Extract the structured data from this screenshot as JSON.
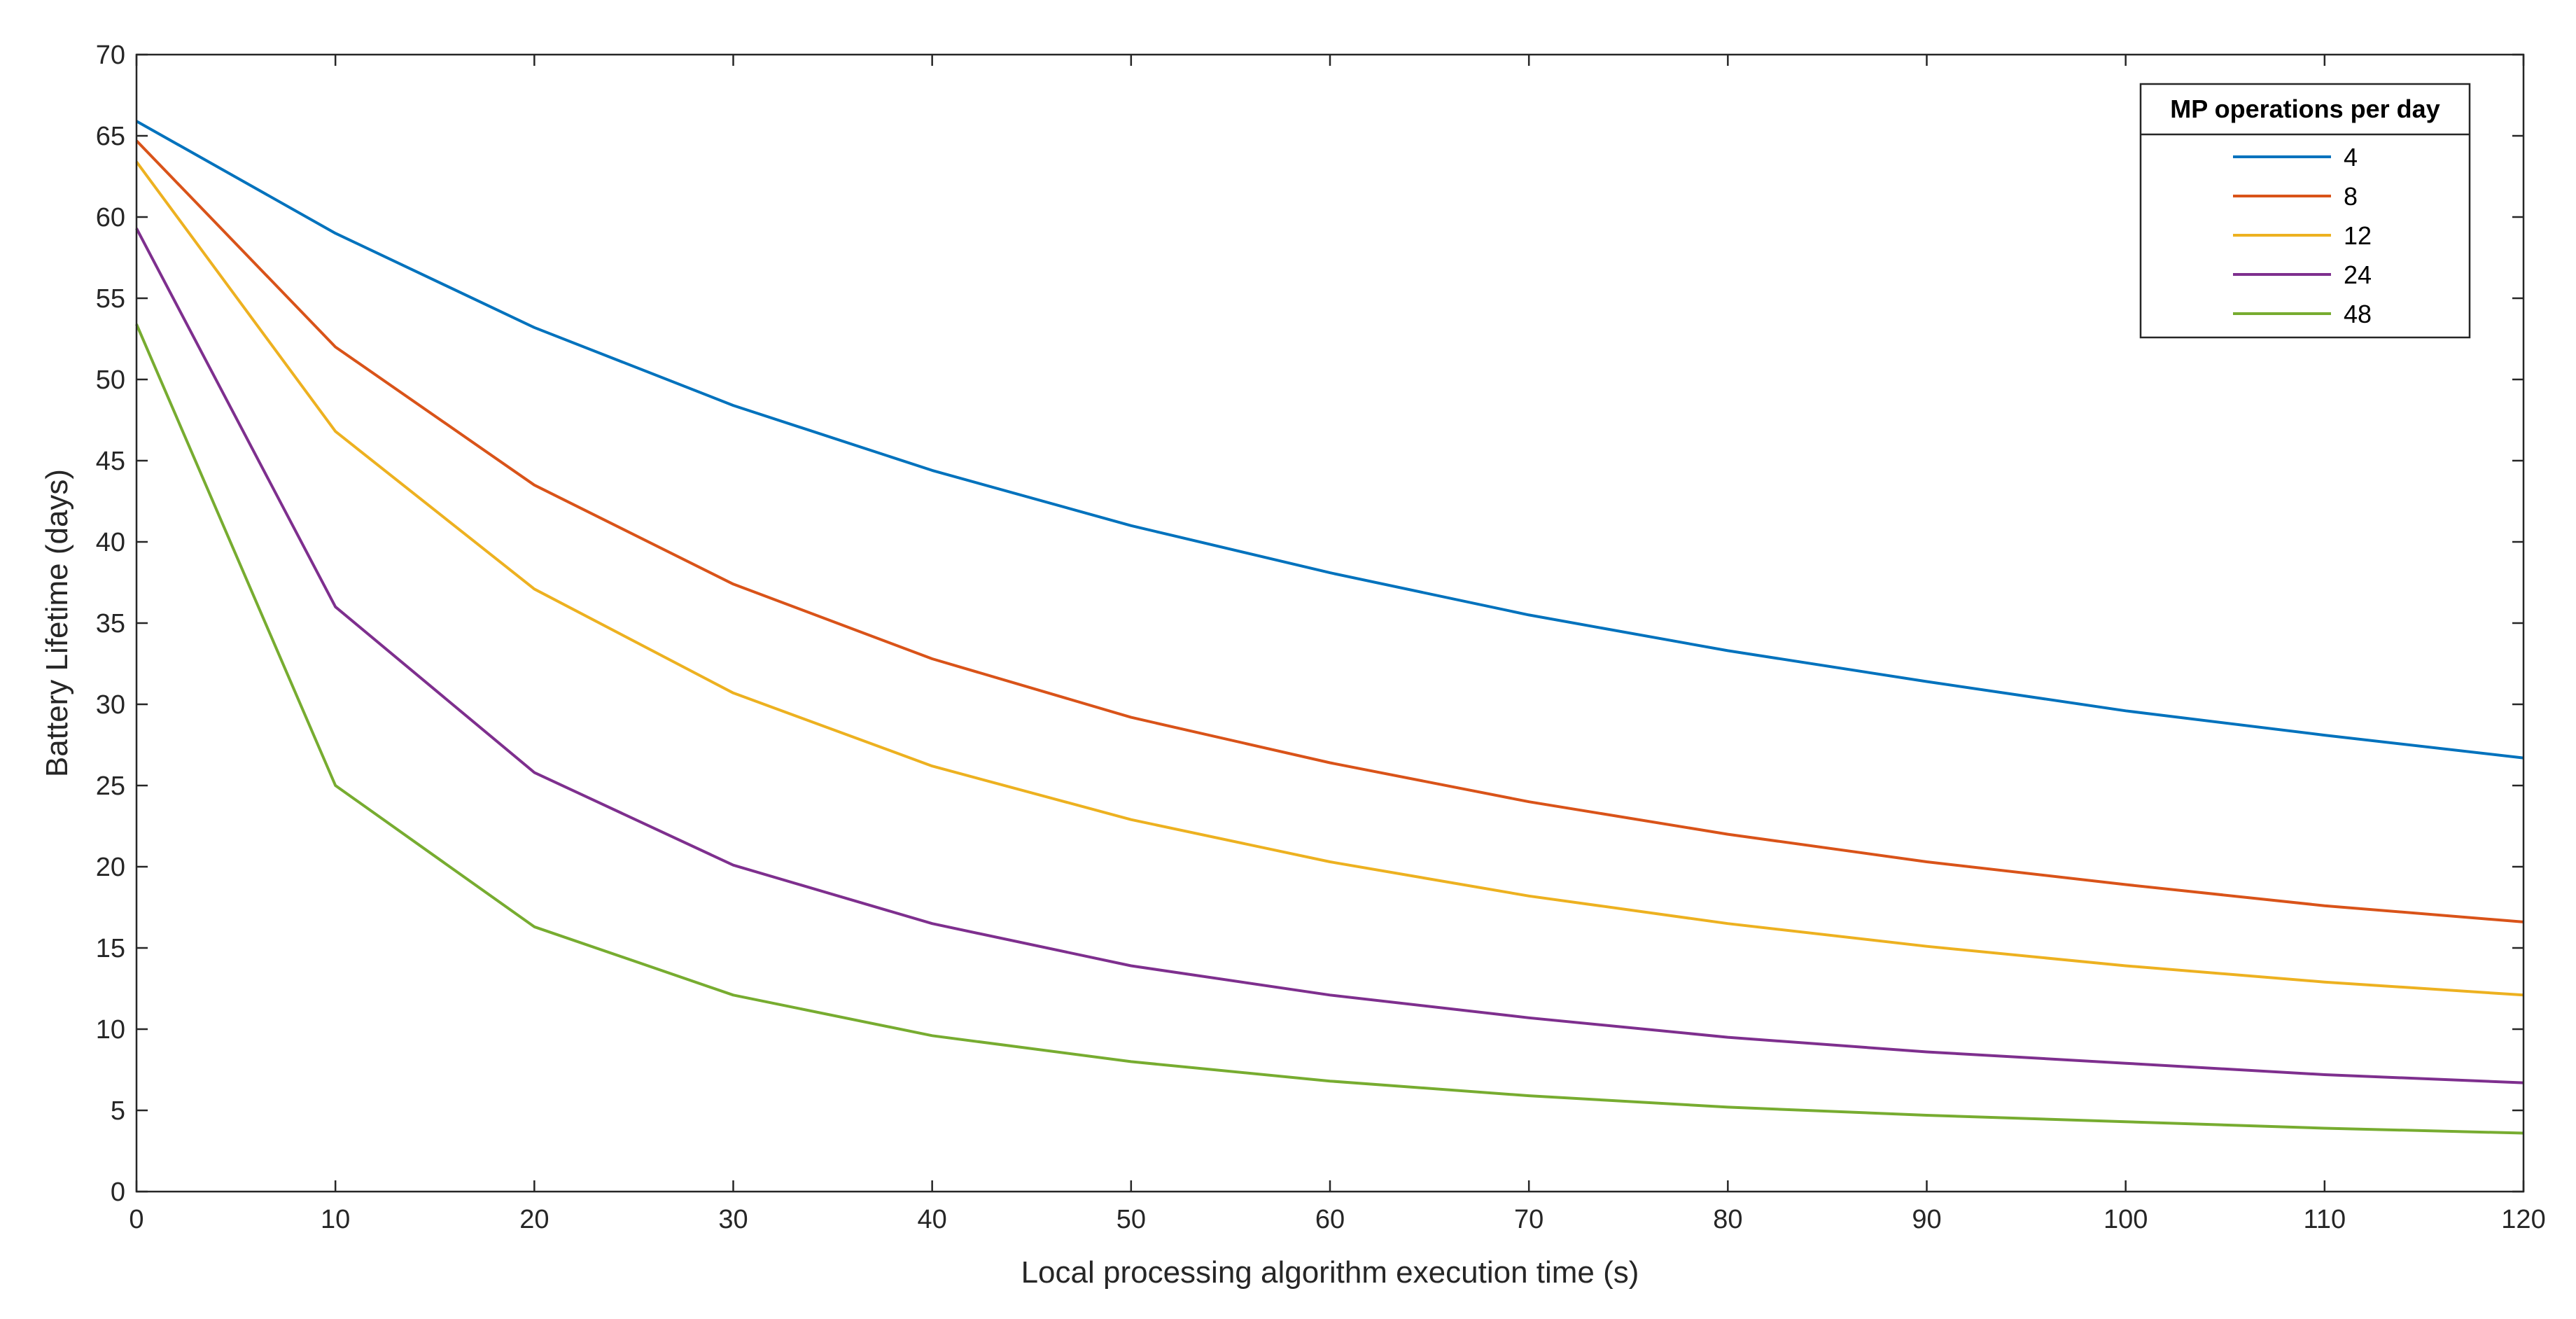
{
  "chart_data": {
    "type": "line",
    "xlabel": "Local processing algorithm execution time (s)",
    "ylabel": "Battery Lifetime (days)",
    "xlim": [
      0,
      120
    ],
    "ylim": [
      0,
      70
    ],
    "xticks": [
      0,
      10,
      20,
      30,
      40,
      50,
      60,
      70,
      80,
      90,
      100,
      110,
      120
    ],
    "yticks": [
      0,
      5,
      10,
      15,
      20,
      25,
      30,
      35,
      40,
      45,
      50,
      55,
      60,
      65,
      70
    ],
    "grid": false,
    "legend": {
      "title": "MP operations per day",
      "position": "top-right"
    },
    "x": [
      0,
      10,
      20,
      30,
      40,
      50,
      60,
      70,
      80,
      90,
      100,
      110,
      120
    ],
    "series": [
      {
        "name": "4",
        "color": "#0072BD",
        "values": [
          65.9,
          59.0,
          53.2,
          48.4,
          44.4,
          41.0,
          38.1,
          35.5,
          33.3,
          31.4,
          29.6,
          28.1,
          26.7
        ]
      },
      {
        "name": "8",
        "color": "#D95319",
        "values": [
          64.7,
          52.0,
          43.5,
          37.4,
          32.8,
          29.2,
          26.4,
          24.0,
          22.0,
          20.3,
          18.9,
          17.6,
          16.6
        ]
      },
      {
        "name": "12",
        "color": "#EDB120",
        "values": [
          63.4,
          46.8,
          37.1,
          30.7,
          26.2,
          22.9,
          20.3,
          18.2,
          16.5,
          15.1,
          13.9,
          12.9,
          12.1
        ]
      },
      {
        "name": "24",
        "color": "#7E2F8E",
        "values": [
          59.3,
          36.0,
          25.8,
          20.1,
          16.5,
          13.9,
          12.1,
          10.7,
          9.5,
          8.6,
          7.9,
          7.2,
          6.7
        ]
      },
      {
        "name": "48",
        "color": "#77AC30",
        "values": [
          53.4,
          25.0,
          16.3,
          12.1,
          9.6,
          8.0,
          6.8,
          5.9,
          5.2,
          4.7,
          4.3,
          3.9,
          3.6
        ]
      }
    ]
  }
}
